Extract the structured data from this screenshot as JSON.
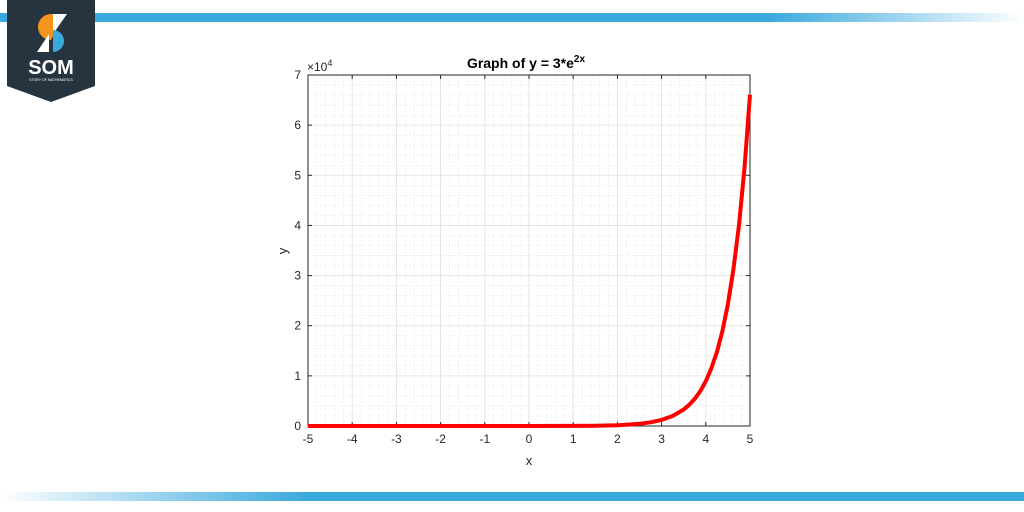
{
  "logo": {
    "text": "SOM",
    "subtext": "STORY OF MATHEMATICS",
    "colors": {
      "shield": "#263440",
      "orange": "#f7941d",
      "blue": "#3aa9de"
    }
  },
  "chart_data": {
    "type": "line",
    "title": "Graph of y = 3*e",
    "title_superscript": "2x",
    "xlabel": "x",
    "ylabel": "y",
    "xlim": [
      -5,
      5
    ],
    "ylim": [
      0,
      70000
    ],
    "y_exponent_label": "×10",
    "y_exponent_power": "4",
    "x_ticks": [
      "-5",
      "-4",
      "-3",
      "-2",
      "-1",
      "0",
      "1",
      "2",
      "3",
      "4",
      "5"
    ],
    "y_ticks": [
      "0",
      "1",
      "2",
      "3",
      "4",
      "5",
      "6",
      "7"
    ],
    "grid": true,
    "minor_grid": true,
    "series": [
      {
        "color": "#ff0000",
        "x": [
          -5,
          -4,
          -3,
          -2,
          -1,
          0,
          1,
          1.5,
          2,
          2.25,
          2.5,
          2.75,
          3,
          3.25,
          3.5,
          3.625,
          3.75,
          3.875,
          4,
          4.125,
          4.25,
          4.375,
          4.5,
          4.625,
          4.75,
          4.875,
          5
        ],
        "y": [
          0.0001,
          0.001,
          0.007,
          0.05,
          0.41,
          3,
          22.17,
          60.26,
          163.79,
          270.05,
          445.24,
          734.1,
          1210.29,
          1995.4,
          3289.9,
          4224.3,
          5424.2,
          6964.9,
          8943.0,
          11482.9,
          14744.6,
          18932,
          24309.3,
          31213.8,
          40079.5,
          51462.7,
          66079.4
        ]
      }
    ]
  }
}
